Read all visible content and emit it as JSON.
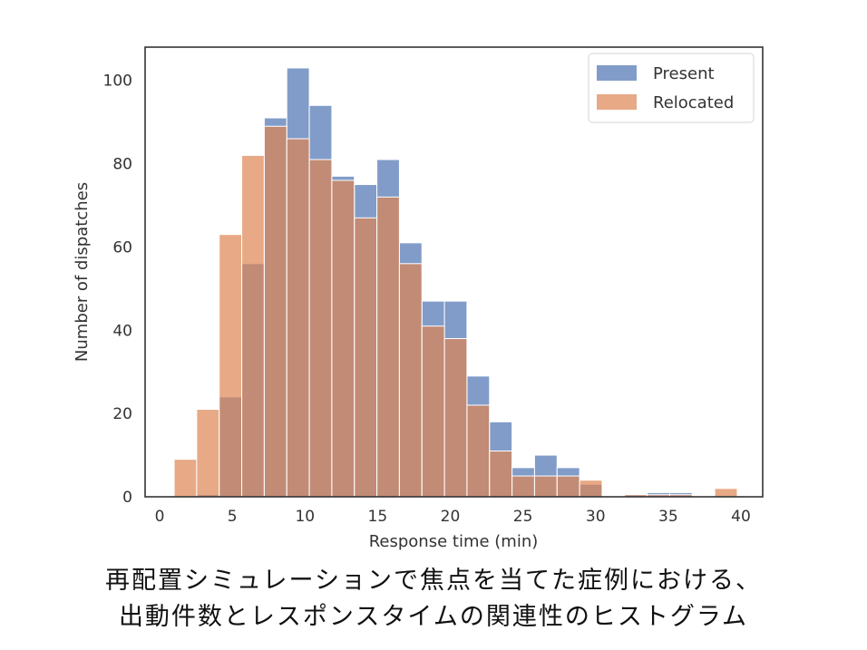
{
  "chart_data": {
    "type": "histogram",
    "xlabel": "Response time (min)",
    "ylabel": "Number of dispatches",
    "xlim": [
      -1,
      41.5
    ],
    "ylim": [
      0,
      108
    ],
    "xticks": [
      0,
      5,
      10,
      15,
      20,
      25,
      30,
      35,
      40
    ],
    "yticks": [
      0,
      20,
      40,
      60,
      80,
      100
    ],
    "bin_edges": [
      1,
      2.55,
      4.1,
      5.65,
      7.2,
      8.75,
      10.3,
      11.85,
      13.4,
      14.95,
      16.5,
      18.05,
      19.6,
      21.15,
      22.7,
      24.25,
      25.8,
      27.35,
      28.9,
      30.45,
      32.0,
      33.55,
      35.1,
      36.65,
      38.2,
      39.75
    ],
    "grid": false,
    "legend_position": "top-right",
    "series": [
      {
        "name": "Present",
        "color": "#4c72b0",
        "values": [
          0,
          0.5,
          24,
          56,
          91,
          103,
          94,
          77,
          75,
          81,
          61,
          47,
          47,
          29,
          18,
          7,
          10,
          7,
          3,
          0,
          0.5,
          1,
          1,
          0,
          0
        ]
      },
      {
        "name": "Relocated",
        "color": "#dd8452",
        "values": [
          9,
          21,
          63,
          82,
          89,
          86,
          81,
          76,
          67,
          72,
          56,
          41,
          38,
          22,
          11,
          5,
          5,
          5,
          4,
          0,
          0.5,
          0.5,
          0.5,
          0,
          2
        ]
      }
    ]
  },
  "caption": {
    "line1": "再配置シミュレーションで焦点を当てた症例における、",
    "line2": "出動件数とレスポンスタイムの関連性のヒストグラム"
  }
}
